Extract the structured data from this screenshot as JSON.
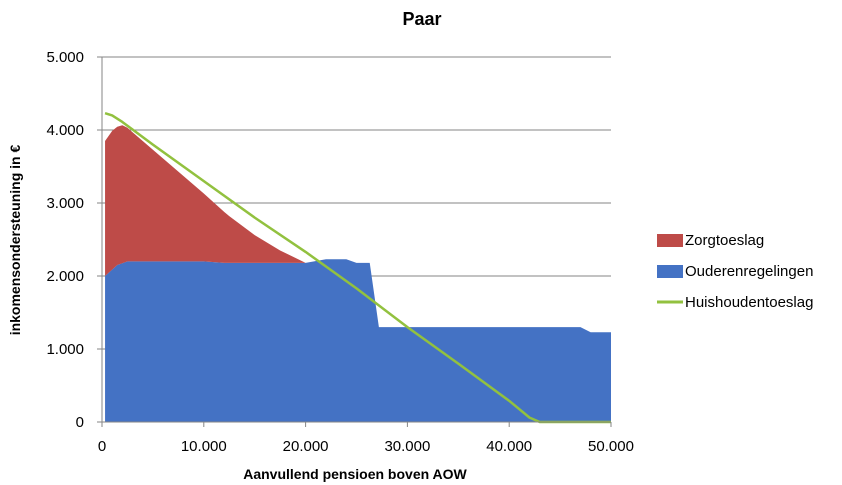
{
  "chart_data": {
    "type": "area",
    "title": "Paar",
    "xlabel": "Aanvullend pensioen boven AOW",
    "ylabel": "inkomensondersteuning in €",
    "xlim": [
      0,
      50000
    ],
    "ylim": [
      0,
      5000
    ],
    "x_ticks": [
      {
        "value": 0,
        "label": "0"
      },
      {
        "value": 10000,
        "label": "10.000"
      },
      {
        "value": 20000,
        "label": "20.000"
      },
      {
        "value": 30000,
        "label": "30.000"
      },
      {
        "value": 40000,
        "label": "40.000"
      },
      {
        "value": 50000,
        "label": "50.000"
      }
    ],
    "y_ticks": [
      {
        "value": 0,
        "label": "0"
      },
      {
        "value": 1000,
        "label": "1.000"
      },
      {
        "value": 2000,
        "label": "2.000"
      },
      {
        "value": 3000,
        "label": "3.000"
      },
      {
        "value": 4000,
        "label": "4.000"
      },
      {
        "value": 5000,
        "label": "5.000"
      }
    ],
    "grid": "horizontal",
    "legend_position": "right",
    "series": [
      {
        "name": "Zorgtoeslag",
        "kind": "stacked-area",
        "color": "#BE4B48",
        "points": [
          [
            300,
            1850
          ],
          [
            1000,
            1900
          ],
          [
            2000,
            1890
          ],
          [
            3000,
            1770
          ],
          [
            5000,
            1530
          ],
          [
            7500,
            1230
          ],
          [
            10000,
            930
          ],
          [
            12500,
            640
          ],
          [
            15000,
            380
          ],
          [
            17500,
            170
          ],
          [
            20000,
            0
          ],
          [
            51000,
            0
          ]
        ]
      },
      {
        "name": "Ouderenregelingen",
        "kind": "stacked-area",
        "color": "#4472C4",
        "points": [
          [
            300,
            2000
          ],
          [
            1500,
            2150
          ],
          [
            2500,
            2200
          ],
          [
            10000,
            2200
          ],
          [
            12000,
            2180
          ],
          [
            20000,
            2180
          ],
          [
            22000,
            2230
          ],
          [
            24000,
            2230
          ],
          [
            25000,
            2180
          ],
          [
            26300,
            2180
          ],
          [
            27200,
            1300
          ],
          [
            47000,
            1300
          ],
          [
            48000,
            1230
          ],
          [
            50000,
            1230
          ]
        ]
      },
      {
        "name": "Huishoudentoeslag",
        "kind": "line",
        "color": "#92C13F",
        "points": [
          [
            300,
            4230
          ],
          [
            1000,
            4200
          ],
          [
            2000,
            4110
          ],
          [
            5000,
            3800
          ],
          [
            10000,
            3300
          ],
          [
            15000,
            2800
          ],
          [
            20000,
            2330
          ],
          [
            25000,
            1830
          ],
          [
            30000,
            1300
          ],
          [
            35000,
            800
          ],
          [
            40000,
            290
          ],
          [
            42000,
            60
          ],
          [
            43000,
            0
          ],
          [
            50000,
            0
          ]
        ]
      }
    ]
  }
}
